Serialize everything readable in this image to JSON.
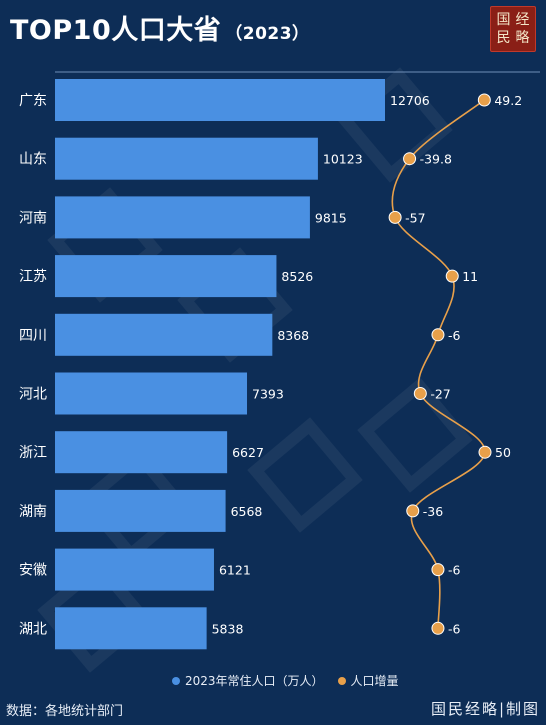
{
  "header": {
    "title": "TOP10人口大省",
    "year": "（2023）"
  },
  "logo": {
    "chars": [
      "经",
      "国",
      "略",
      "民"
    ]
  },
  "chart_data": {
    "type": "bar",
    "orientation": "horizontal",
    "categories": [
      "广东",
      "山东",
      "河南",
      "江苏",
      "四川",
      "河北",
      "浙江",
      "湖南",
      "安徽",
      "湖北"
    ],
    "series": [
      {
        "name": "2023年常住人口（万人）",
        "type": "bar",
        "color": "#4a90e2",
        "values": [
          12706,
          10123,
          9815,
          8526,
          8368,
          7393,
          6627,
          6568,
          6121,
          5838
        ]
      },
      {
        "name": "人口增量",
        "type": "line",
        "color": "#e8a04a",
        "values": [
          49.2,
          -39.8,
          -57,
          11,
          -6,
          -27,
          50,
          -36,
          -6,
          -6
        ],
        "labels": [
          "49.2",
          "-39.8",
          "-57",
          "11",
          "-6",
          "-27",
          "50",
          "-36",
          "-6",
          "-6"
        ]
      }
    ],
    "legend": "bottom"
  },
  "footer": {
    "source": "数据：各地统计部门",
    "brand": "国民经略|制图"
  }
}
